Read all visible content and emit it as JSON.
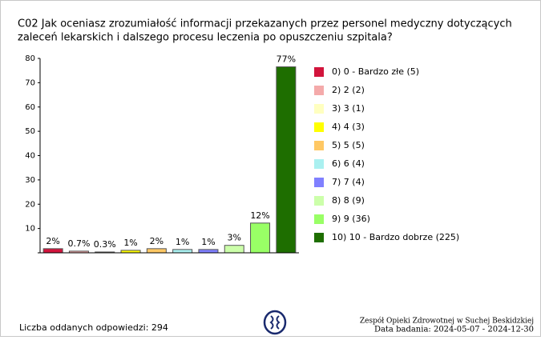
{
  "chart_data": {
    "type": "bar",
    "title": [
      "C02 Jak oceniasz zrozumiałość informacji przekazanych przez personel medyczny dotyczących",
      "zaleceń lekarskich i dalszego procesu leczenia po opuszczeniu szpitala?"
    ],
    "categories": [
      "0) 0 - Bardzo złe (5)",
      "2) 2 (2)",
      "3) 3 (1)",
      "4) 4 (3)",
      "5) 5 (5)",
      "6) 6 (4)",
      "7) 7 (4)",
      "8) 8 (9)",
      "9) 9 (36)",
      "10) 10 - Bardzo dobrze (225)"
    ],
    "values": [
      1.7,
      0.68,
      0.34,
      1.02,
      1.7,
      1.36,
      1.36,
      3.06,
      12.24,
      76.53
    ],
    "value_labels": [
      "2%",
      "0.7%",
      "0.3%",
      "1%",
      "2%",
      "1%",
      "1%",
      "3%",
      "12%",
      "77%"
    ],
    "colors": [
      "#d2143c",
      "#f4aaaa",
      "#ffffc0",
      "#ffff00",
      "#ffc864",
      "#aaf0f0",
      "#8080ff",
      "#ccffaa",
      "#99ff66",
      "#1e6e00"
    ],
    "ylim": [
      0,
      80
    ],
    "yticks": [
      0,
      10,
      20,
      30,
      40,
      50,
      60,
      70,
      80
    ],
    "legend": "right",
    "footer": {
      "responses": "Liczba oddanych odpowiedzi: 294",
      "organization": "Zespół Opieki Zdrowotnej w Suchej Beskidzkiej",
      "date": "Data badania: 2024-05-07 - 2024-12-30"
    }
  }
}
